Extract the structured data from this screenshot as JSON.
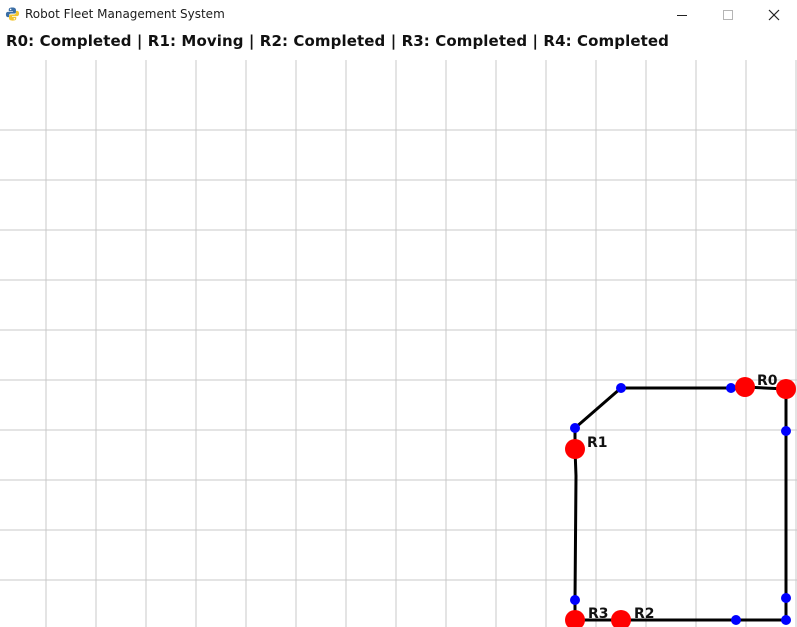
{
  "window": {
    "title": "Robot Fleet Management System",
    "icon": "python-icon",
    "controls": [
      "minimize-icon",
      "maximize-icon",
      "close-icon"
    ]
  },
  "status_text": "R0: Completed | R1: Moving | R2: Completed | R3: Completed | R4: Completed",
  "colors": {
    "grid": "#c8c8c8",
    "path": "#000000",
    "waypoint": "#0000ff",
    "robot": "#ff0000"
  },
  "robots": [
    {
      "id": "R0",
      "label": "R0",
      "status": "Completed"
    },
    {
      "id": "R1",
      "label": "R1",
      "status": "Moving"
    },
    {
      "id": "R2",
      "label": "R2",
      "status": "Completed"
    },
    {
      "id": "R3",
      "label": "R3",
      "status": "Completed"
    },
    {
      "id": "R4",
      "label": "",
      "status": "Completed"
    }
  ]
}
